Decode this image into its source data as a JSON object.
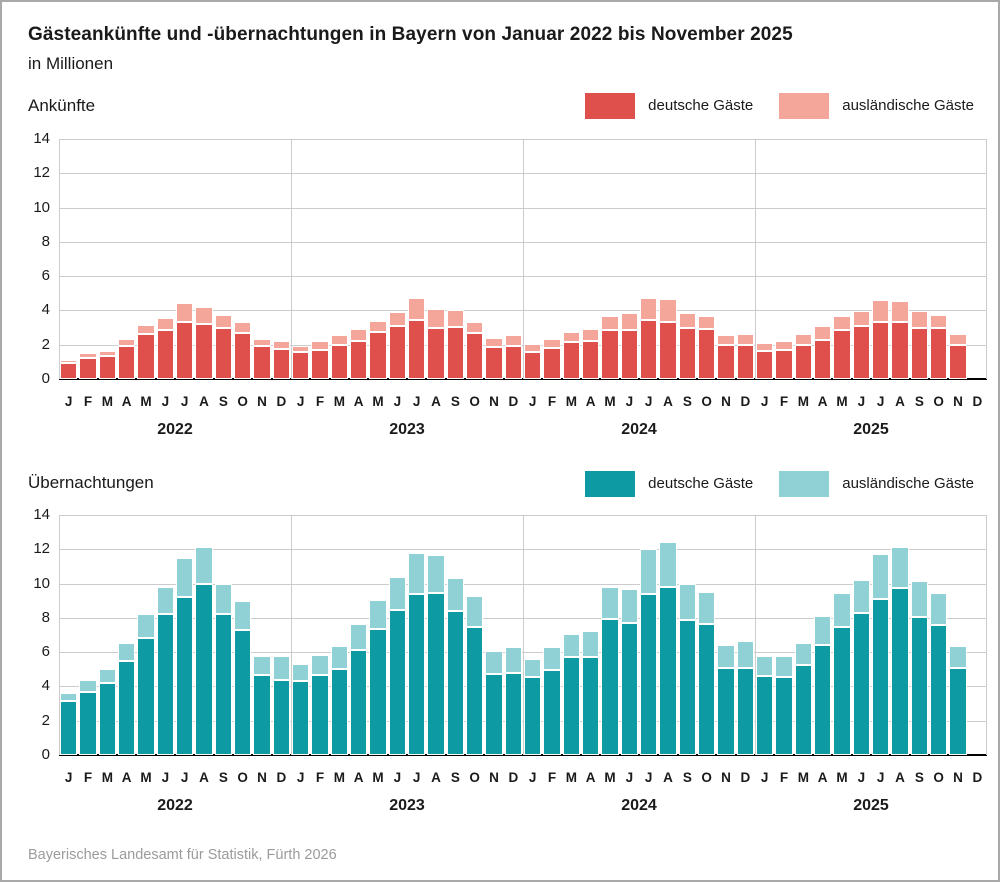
{
  "page": {
    "title": "Gästeankünfte und -übernachtungen in Bayern von Januar 2022 bis November 2025",
    "subtitle": "in Millionen",
    "footer": "Bayerisches Landesamt für Statistik, Fürth 2026"
  },
  "colors": {
    "arrivals_domestic": "#df4f4b",
    "arrivals_foreign": "#f4a69b",
    "overnight_domestic": "#0e9aa2",
    "overnight_foreign": "#90d1d6",
    "gridline": "#cccccc",
    "axis": "#000000",
    "footer_text": "#9b9b9b",
    "frame": "#a9a9a9"
  },
  "chart_data": [
    {
      "type": "bar",
      "stacked": true,
      "title": "Ankünfte",
      "unit": "Millionen",
      "ylim": [
        0,
        14
      ],
      "ytick_step": 2,
      "grid": true,
      "legend_position": "top-right",
      "years": [
        "2022",
        "2023",
        "2024",
        "2025"
      ],
      "month_letters": [
        "J",
        "F",
        "M",
        "A",
        "M",
        "J",
        "J",
        "A",
        "S",
        "O",
        "N",
        "D"
      ],
      "n_months": 47,
      "series": [
        {
          "name": "deutsche Gäste",
          "color": "#df4f4b",
          "values": [
            0.95,
            1.2,
            1.35,
            1.95,
            2.6,
            2.85,
            3.35,
            3.2,
            2.95,
            2.7,
            1.9,
            1.75,
            1.6,
            1.7,
            2.0,
            2.2,
            2.75,
            3.1,
            3.45,
            2.95,
            3.05,
            2.7,
            1.85,
            1.9,
            1.6,
            1.8,
            2.15,
            2.2,
            2.85,
            2.85,
            3.45,
            3.3,
            3.0,
            2.9,
            2.0,
            2.0,
            1.65,
            1.7,
            2.0,
            2.3,
            2.85,
            3.1,
            3.35,
            3.35,
            2.95,
            2.95,
            2.0
          ]
        },
        {
          "name": "ausländische Gäste",
          "color": "#f4a69b",
          "values": [
            0.15,
            0.3,
            0.3,
            0.4,
            0.55,
            0.7,
            1.1,
            1.0,
            0.8,
            0.6,
            0.45,
            0.45,
            0.35,
            0.5,
            0.55,
            0.7,
            0.65,
            0.8,
            1.25,
            1.15,
            0.95,
            0.65,
            0.55,
            0.65,
            0.45,
            0.55,
            0.6,
            0.7,
            0.8,
            1.0,
            1.3,
            1.35,
            0.85,
            0.75,
            0.55,
            0.6,
            0.45,
            0.5,
            0.6,
            0.8,
            0.8,
            0.85,
            1.25,
            1.2,
            1.0,
            0.8,
            0.6
          ]
        }
      ]
    },
    {
      "type": "bar",
      "stacked": true,
      "title": "Übernachtungen",
      "unit": "Millionen",
      "ylim": [
        0,
        14
      ],
      "ytick_step": 2,
      "grid": true,
      "legend_position": "top-right",
      "years": [
        "2022",
        "2023",
        "2024",
        "2025"
      ],
      "month_letters": [
        "J",
        "F",
        "M",
        "A",
        "M",
        "J",
        "J",
        "A",
        "S",
        "O",
        "N",
        "D"
      ],
      "n_months": 47,
      "series": [
        {
          "name": "deutsche Gäste",
          "color": "#0e9aa2",
          "values": [
            3.15,
            3.65,
            4.2,
            5.5,
            6.8,
            8.25,
            9.2,
            10.0,
            8.2,
            7.3,
            4.65,
            4.4,
            4.3,
            4.65,
            5.0,
            6.15,
            7.35,
            8.45,
            9.4,
            9.45,
            8.4,
            7.45,
            4.75,
            4.8,
            4.55,
            4.95,
            5.7,
            5.7,
            7.95,
            7.7,
            9.4,
            9.8,
            7.9,
            7.65,
            5.05,
            5.05,
            4.6,
            4.55,
            5.25,
            6.4,
            7.45,
            8.3,
            9.1,
            9.75,
            8.05,
            7.6,
            5.05
          ]
        },
        {
          "name": "ausländische Gäste",
          "color": "#90d1d6",
          "values": [
            0.45,
            0.7,
            0.8,
            1.05,
            1.4,
            1.55,
            2.3,
            2.15,
            1.75,
            1.7,
            1.15,
            1.4,
            1.0,
            1.2,
            1.35,
            1.5,
            1.7,
            1.95,
            2.4,
            2.2,
            1.95,
            1.8,
            1.3,
            1.5,
            1.05,
            1.35,
            1.35,
            1.55,
            1.85,
            2.0,
            2.6,
            2.65,
            2.05,
            1.85,
            1.35,
            1.6,
            1.15,
            1.2,
            1.3,
            1.7,
            2.0,
            1.9,
            2.6,
            2.4,
            2.1,
            1.85,
            1.3
          ]
        }
      ]
    }
  ]
}
